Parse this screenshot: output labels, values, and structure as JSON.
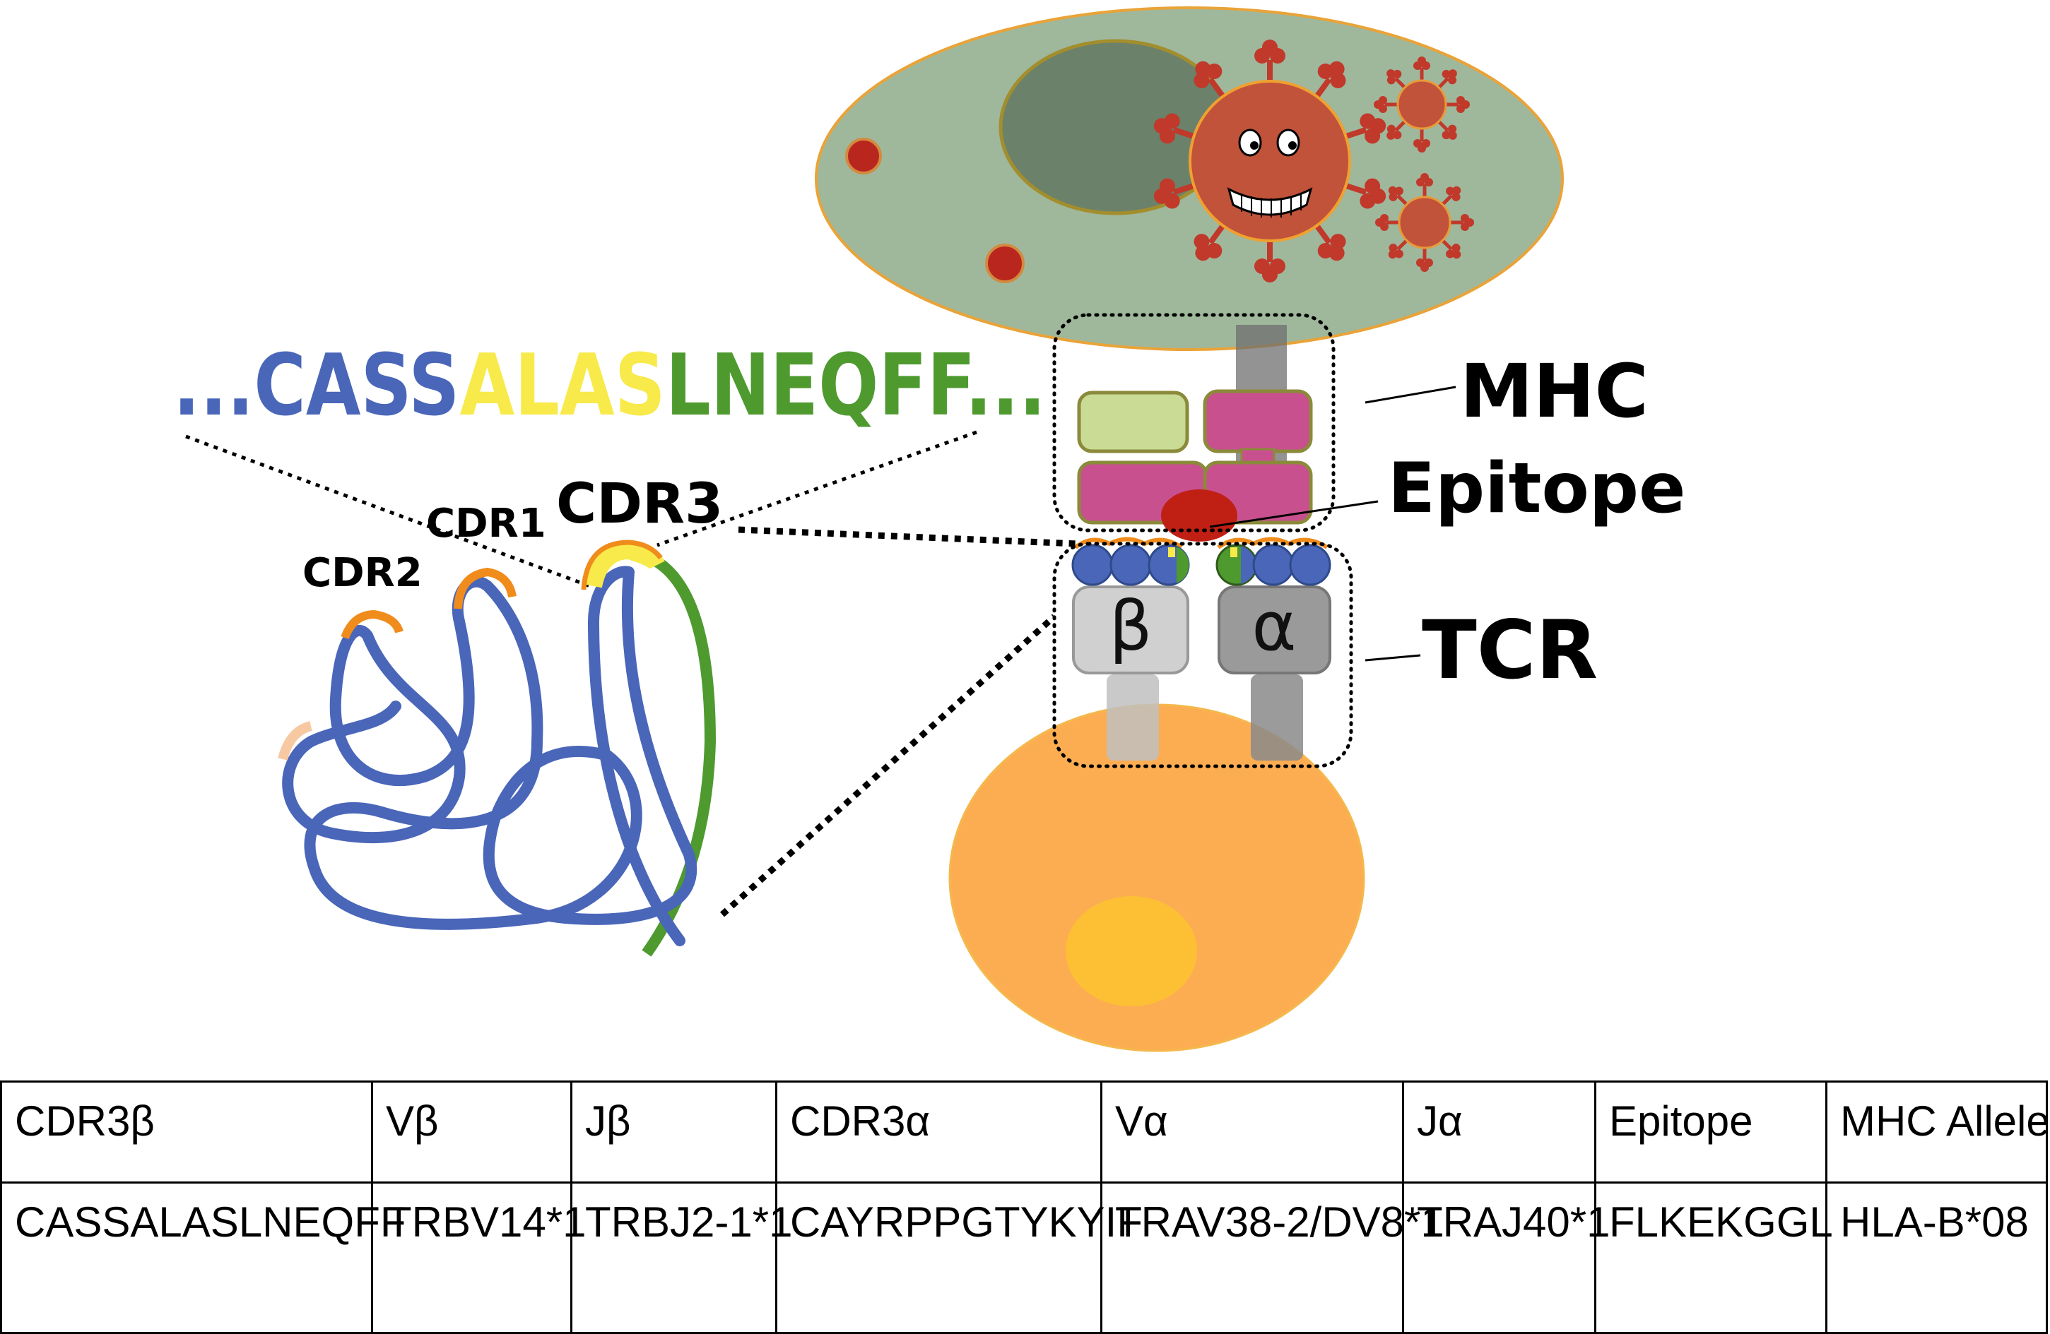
{
  "sequence": {
    "prefix": "...",
    "part_blue": "CASS",
    "part_yellow": "ALAS",
    "part_green": "LNEQFF",
    "suffix": "..."
  },
  "labels": {
    "cdr1": "CDR1",
    "cdr2": "CDR2",
    "cdr3": "CDR3",
    "mhc": "MHC",
    "epitope": "Epitope",
    "tcr": "TCR",
    "beta": "β",
    "alpha": "α"
  },
  "colors": {
    "blue": "#4a66b9",
    "yellow": "#f7ea4a",
    "green": "#4e9a2f",
    "orange": "#f08c1b",
    "mhc_pink": "#c8508f",
    "mhc_light_green": "#c9db95",
    "infected_cell": "#9fb89c",
    "t_cell": "#fcad52",
    "virus": "#c0533a"
  },
  "table": {
    "headers": [
      "CDR3β",
      "Vβ",
      "Jβ",
      "CDR3α",
      "Vα",
      "Jα",
      "Epitope",
      "MHC Allele"
    ],
    "rows": [
      [
        "CASSALASLNEQFF",
        "TRBV14*1",
        "TRBJ2-1*1",
        "CAYRPPGTYKYIF",
        "TRAV38-2/DV8*1",
        "TRAJ40*1",
        "FLKEKGGL",
        "HLA-B*08"
      ]
    ]
  }
}
